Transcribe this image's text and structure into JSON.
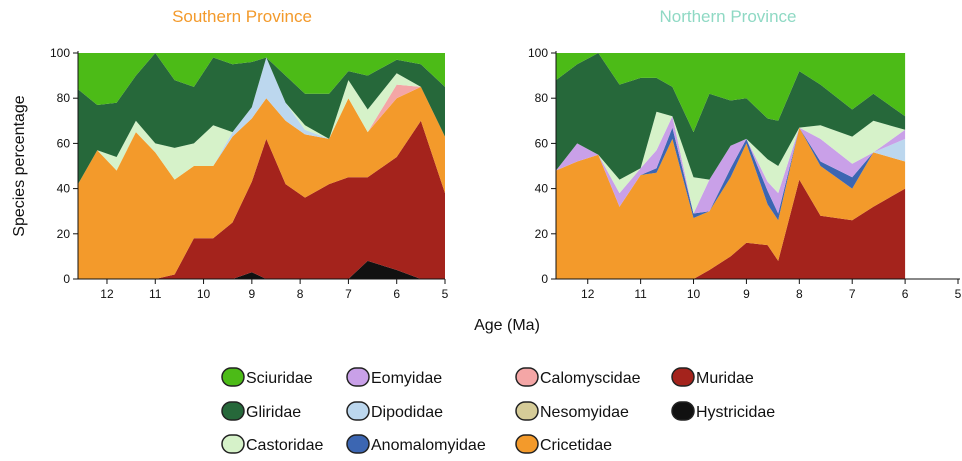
{
  "chart_data": [
    {
      "type": "area",
      "title": "Southern Province",
      "title_color": "#f39a2b",
      "ylabel": "Species percentage",
      "xlabel": "Age (Ma)",
      "xlim": [
        12.6,
        5
      ],
      "xticks": [
        12,
        11,
        10,
        9,
        8,
        7,
        6,
        5
      ],
      "ylim": [
        0,
        100
      ],
      "yticks": [
        0,
        20,
        40,
        60,
        80,
        100
      ],
      "stacked": true,
      "x": [
        12.6,
        12.2,
        11.8,
        11.4,
        11,
        10.6,
        10.2,
        9.8,
        9.4,
        9,
        8.7,
        8.3,
        7.9,
        7.4,
        7,
        6.6,
        6,
        5.5,
        5
      ],
      "series": [
        {
          "name": "Hystricidae",
          "color": "#111111",
          "values": [
            0,
            0,
            0,
            0,
            0,
            0,
            0,
            0,
            0,
            3,
            0,
            0,
            0,
            0,
            0,
            8,
            4,
            0,
            0
          ]
        },
        {
          "name": "Muridae",
          "color": "#a4231c",
          "values": [
            0,
            0,
            0,
            0,
            0,
            2,
            18,
            18,
            25,
            40,
            62,
            42,
            36,
            42,
            45,
            37,
            50,
            70,
            38
          ]
        },
        {
          "name": "Cricetidae",
          "color": "#f39a2b",
          "values": [
            42,
            57,
            48,
            65,
            56,
            42,
            32,
            32,
            38,
            28,
            18,
            28,
            28,
            20,
            35,
            20,
            26,
            15,
            25
          ]
        },
        {
          "name": "Anomalomyidae",
          "color": "#3c66b2",
          "values": [
            0,
            0,
            0,
            0,
            0,
            0,
            0,
            0,
            0,
            0,
            0,
            0,
            0,
            0,
            0,
            0,
            0,
            0,
            0
          ]
        },
        {
          "name": "Dipodidae",
          "color": "#bcd7ee",
          "values": [
            0,
            0,
            0,
            0,
            0,
            0,
            0,
            0,
            2,
            5,
            18,
            8,
            2,
            0,
            0,
            0,
            0,
            0,
            0
          ]
        },
        {
          "name": "Eomyidae",
          "color": "#c9a0e8",
          "values": [
            0,
            0,
            0,
            0,
            0,
            0,
            0,
            0,
            0,
            0,
            0,
            0,
            0,
            0,
            0,
            0,
            0,
            0,
            0
          ]
        },
        {
          "name": "Calomyscidae",
          "color": "#f4a6a6",
          "values": [
            0,
            0,
            0,
            0,
            0,
            0,
            0,
            0,
            0,
            0,
            0,
            0,
            0,
            0,
            0,
            0,
            6,
            0,
            0
          ]
        },
        {
          "name": "Nesomyidae",
          "color": "#d6cc98",
          "values": [
            0,
            0,
            0,
            0,
            0,
            0,
            0,
            0,
            0,
            0,
            0,
            0,
            0,
            0,
            0,
            0,
            0,
            0,
            0
          ]
        },
        {
          "name": "Castoridae",
          "color": "#d6f2c9",
          "values": [
            0,
            0,
            6,
            5,
            4,
            14,
            10,
            18,
            0,
            0,
            0,
            0,
            2,
            0,
            8,
            10,
            5,
            0,
            0
          ]
        },
        {
          "name": "Gliridae",
          "color": "#26683a",
          "values": [
            42,
            20,
            24,
            20,
            40,
            30,
            25,
            30,
            30,
            20,
            0,
            12,
            14,
            20,
            4,
            15,
            6,
            10,
            22
          ]
        },
        {
          "name": "Sciuridae",
          "color": "#4cbb17",
          "values": [
            16,
            23,
            22,
            10,
            0,
            12,
            15,
            2,
            5,
            4,
            2,
            10,
            18,
            18,
            8,
            10,
            3,
            5,
            15
          ]
        }
      ]
    },
    {
      "type": "area",
      "title": "Northern Province",
      "title_color": "#8fd9c4",
      "xlim": [
        12.6,
        5
      ],
      "xticks": [
        12,
        11,
        10,
        9,
        8,
        7,
        6,
        5
      ],
      "ylim": [
        0,
        100
      ],
      "yticks": [
        0,
        20,
        40,
        60,
        80,
        100
      ],
      "stacked": true,
      "x": [
        12.6,
        12.2,
        11.8,
        11.4,
        11,
        10.7,
        10.4,
        10,
        9.7,
        9.3,
        9,
        8.6,
        8.4,
        8,
        7.6,
        7,
        6.6,
        6
      ],
      "series": [
        {
          "name": "Hystricidae",
          "color": "#111111",
          "values": [
            0,
            0,
            0,
            0,
            0,
            0,
            0,
            0,
            0,
            0,
            0,
            0,
            0,
            0,
            0,
            0,
            0,
            0
          ]
        },
        {
          "name": "Muridae",
          "color": "#a4231c",
          "values": [
            0,
            0,
            0,
            0,
            0,
            0,
            0,
            0,
            4,
            10,
            16,
            15,
            8,
            44,
            28,
            26,
            32,
            40
          ]
        },
        {
          "name": "Cricetidae",
          "color": "#f39a2b",
          "values": [
            48,
            52,
            55,
            32,
            46,
            47,
            62,
            27,
            26,
            35,
            44,
            18,
            18,
            23,
            22,
            14,
            24,
            12
          ]
        },
        {
          "name": "Anomalomyidae",
          "color": "#3c66b2",
          "values": [
            0,
            0,
            0,
            0,
            0,
            2,
            5,
            2,
            0,
            4,
            2,
            6,
            3,
            0,
            2,
            5,
            0,
            0
          ]
        },
        {
          "name": "Dipodidae",
          "color": "#bcd7ee",
          "values": [
            0,
            0,
            0,
            0,
            0,
            0,
            0,
            0,
            0,
            0,
            0,
            0,
            0,
            0,
            0,
            0,
            0,
            10
          ]
        },
        {
          "name": "Eomyidae",
          "color": "#c9a0e8",
          "values": [
            0,
            8,
            0,
            6,
            3,
            8,
            5,
            0,
            14,
            10,
            0,
            4,
            9,
            0,
            10,
            6,
            0,
            4
          ]
        },
        {
          "name": "Calomyscidae",
          "color": "#f4a6a6",
          "values": [
            0,
            0,
            0,
            0,
            0,
            0,
            0,
            0,
            0,
            0,
            0,
            0,
            0,
            0,
            0,
            0,
            0,
            0
          ]
        },
        {
          "name": "Nesomyidae",
          "color": "#d6cc98",
          "values": [
            0,
            0,
            0,
            0,
            0,
            0,
            0,
            0,
            0,
            0,
            0,
            0,
            0,
            0,
            0,
            0,
            0,
            0
          ]
        },
        {
          "name": "Castoridae",
          "color": "#d6f2c9",
          "values": [
            0,
            0,
            0,
            6,
            0,
            17,
            0,
            16,
            0,
            0,
            0,
            10,
            12,
            0,
            6,
            12,
            14,
            0
          ]
        },
        {
          "name": "Gliridae",
          "color": "#26683a",
          "values": [
            40,
            35,
            45,
            42,
            40,
            15,
            13,
            20,
            38,
            20,
            18,
            18,
            20,
            25,
            18,
            12,
            12,
            6
          ]
        },
        {
          "name": "Sciuridae",
          "color": "#4cbb17",
          "values": [
            12,
            5,
            0,
            14,
            11,
            11,
            15,
            35,
            18,
            21,
            20,
            29,
            30,
            8,
            14,
            25,
            18,
            28
          ]
        }
      ]
    }
  ]
}
